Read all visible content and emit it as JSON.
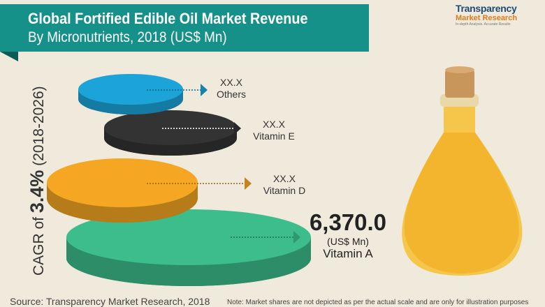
{
  "header": {
    "title": "Global Fortified Edible Oil Market Revenue",
    "subtitle": "By Micronutrients, 2018 (US$ Mn)"
  },
  "logo": {
    "name": "Transparency",
    "sub": "Market Research",
    "tagline": "In-depth Analysis. Accurate Results"
  },
  "cagr": {
    "prefix": "CAGR of ",
    "value": "3.4%",
    "period": " (2018-2026)"
  },
  "chart_data": {
    "type": "bar",
    "title": "Global Fortified Edible Oil Market Revenue By Micronutrients, 2018 (US$ Mn)",
    "categories": [
      "Others",
      "Vitamin E",
      "Vitamin D",
      "Vitamin A"
    ],
    "labels": [
      "XX.X",
      "XX.X",
      "XX.X",
      "6,370.0"
    ],
    "values": [
      null,
      null,
      null,
      6370.0
    ],
    "unit": "(US$ Mn)",
    "colors": [
      "#1ca4d8",
      "#333333",
      "#f5a623",
      "#3dbd8b"
    ]
  },
  "footer": {
    "source": "Source: Transparency Market Research, 2018",
    "note": "Note: Market shares are not depicted as per the actual scale and are only for illustration purposes"
  }
}
